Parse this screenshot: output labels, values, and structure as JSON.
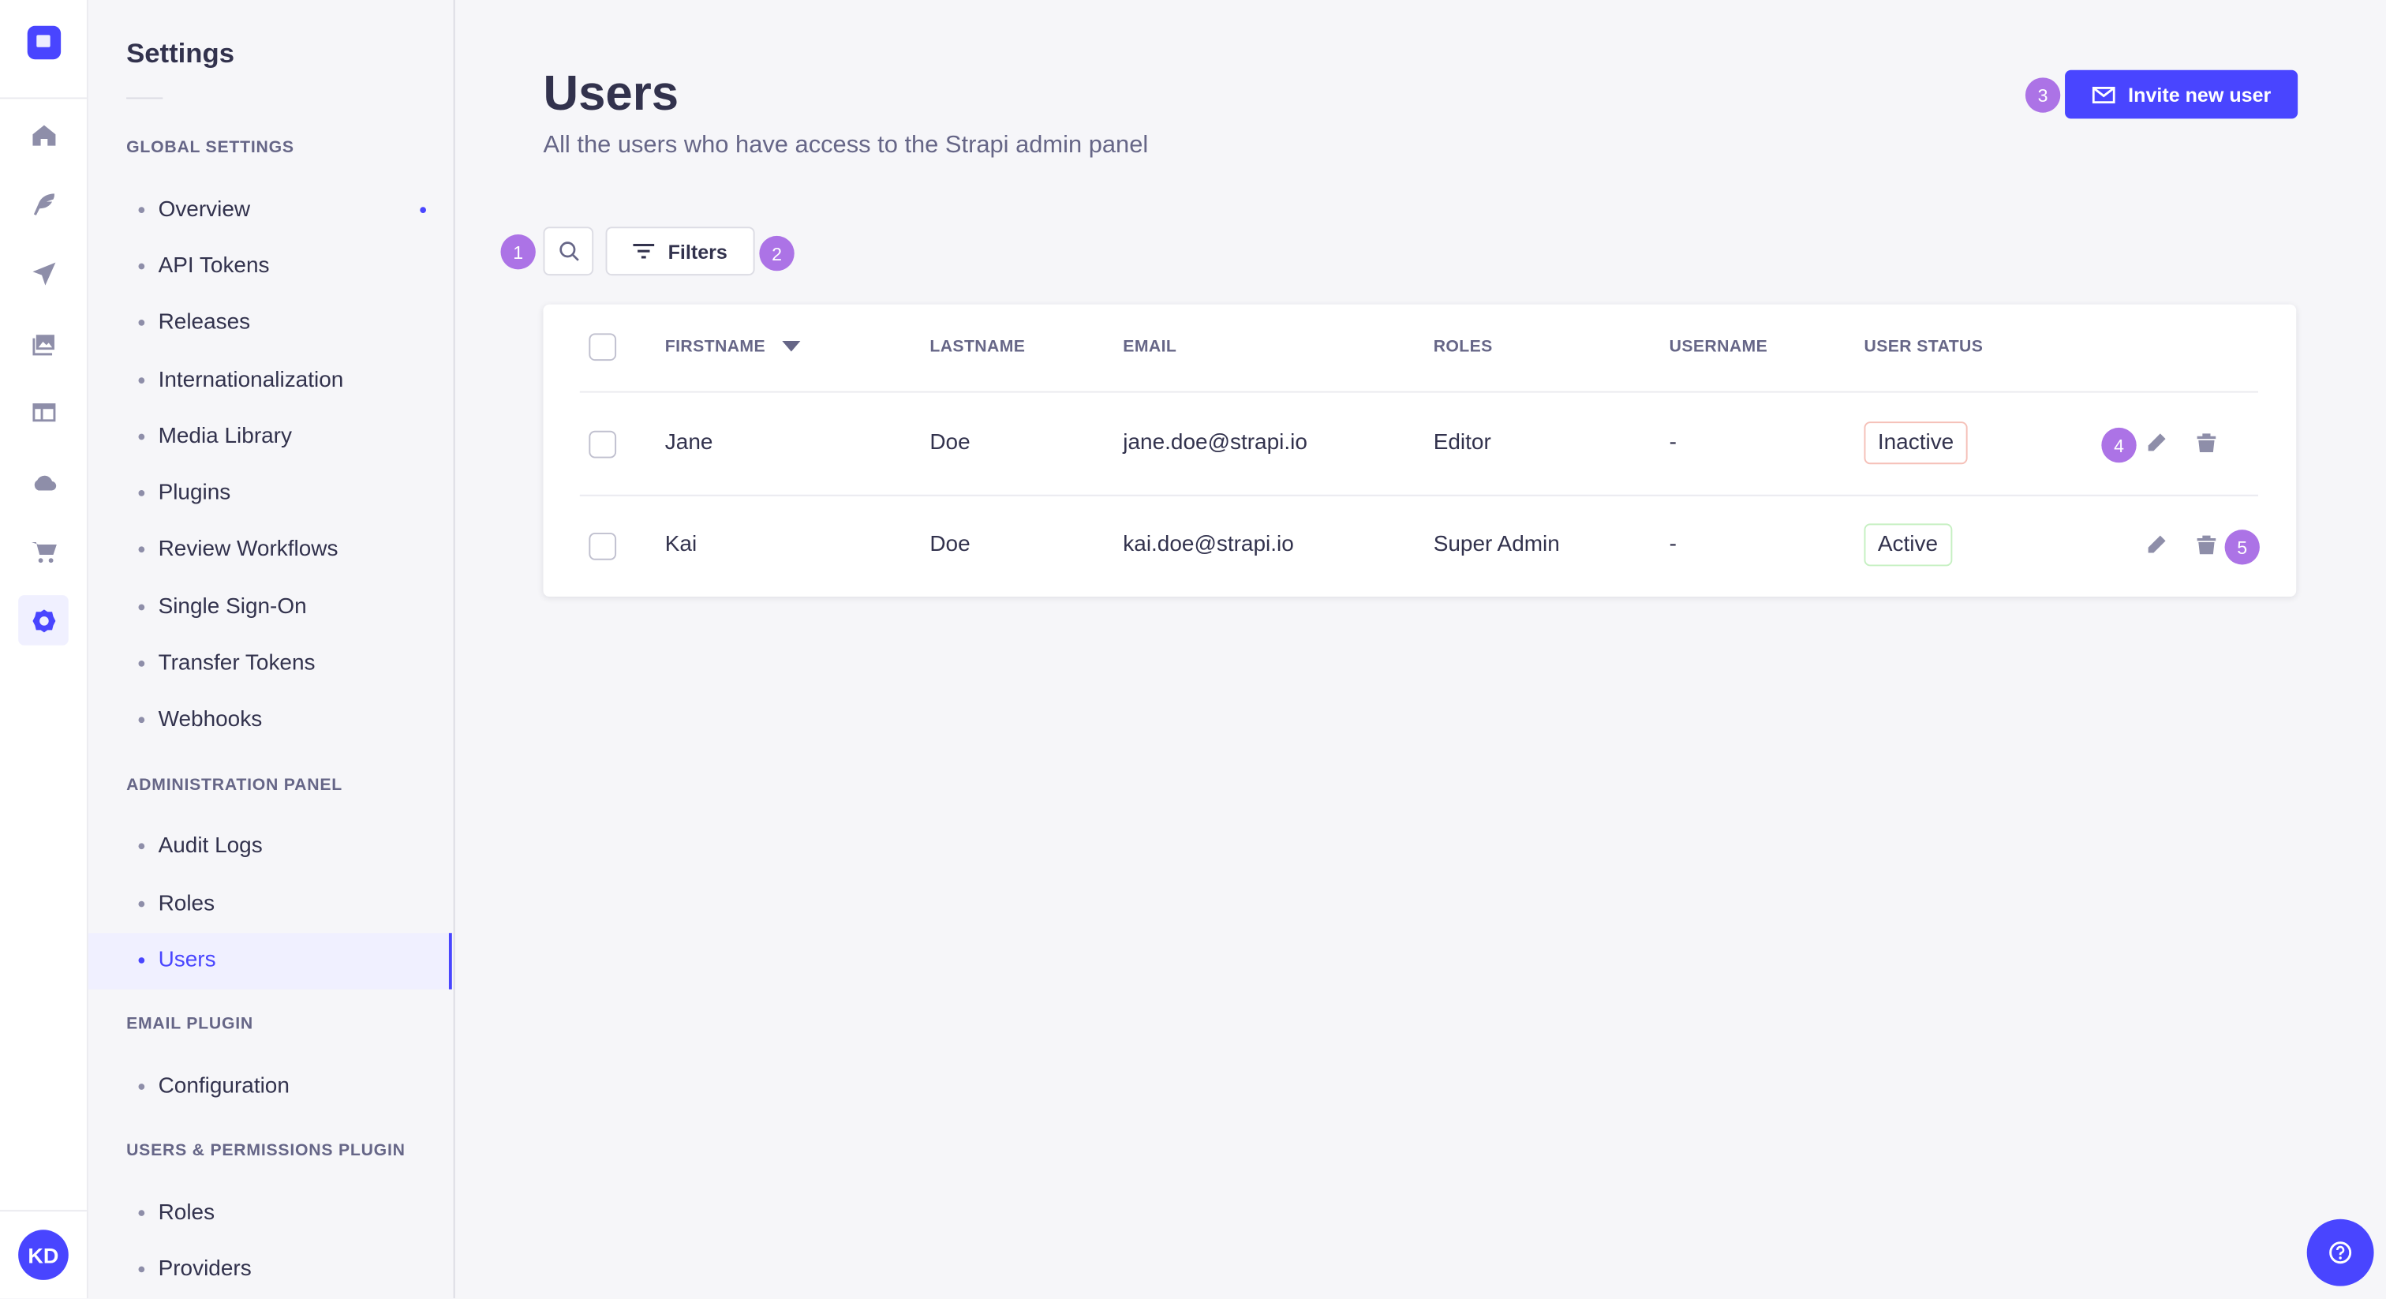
{
  "nav_rail": {
    "icons": [
      "home-icon",
      "content-manager-icon",
      "releases-icon",
      "media-library-icon",
      "content-type-builder-icon",
      "cloud-icon",
      "marketplace-icon",
      "settings-icon"
    ],
    "active": "settings-icon",
    "avatar_initials": "KD"
  },
  "sidebar": {
    "title": "Settings",
    "sections": [
      {
        "label": "Global Settings",
        "items": [
          "Overview",
          "API Tokens",
          "Releases",
          "Internationalization",
          "Media Library",
          "Plugins",
          "Review Workflows",
          "Single Sign-On",
          "Transfer Tokens",
          "Webhooks"
        ]
      },
      {
        "label": "Administration Panel",
        "items": [
          "Audit Logs",
          "Roles",
          "Users"
        ]
      },
      {
        "label": "Email Plugin",
        "items": [
          "Configuration"
        ]
      },
      {
        "label": "Users & Permissions Plugin",
        "items": [
          "Roles",
          "Providers"
        ]
      }
    ],
    "active_item": "Users"
  },
  "header": {
    "title": "Users",
    "subtitle": "All the users who have access to the Strapi admin panel",
    "invite_label": "Invite new user"
  },
  "toolbar": {
    "filters_label": "Filters"
  },
  "annotations": [
    "1",
    "2",
    "3",
    "4",
    "5"
  ],
  "table": {
    "columns": [
      "Firstname",
      "Lastname",
      "Email",
      "Roles",
      "Username",
      "User status"
    ],
    "sorted_column": "Firstname",
    "rows": [
      {
        "firstname": "Jane",
        "lastname": "Doe",
        "email": "jane.doe@strapi.io",
        "roles": "Editor",
        "username": "-",
        "status": "Inactive"
      },
      {
        "firstname": "Kai",
        "lastname": "Doe",
        "email": "kai.doe@strapi.io",
        "roles": "Super Admin",
        "username": "-",
        "status": "Active"
      }
    ]
  },
  "colors": {
    "primary": "#4945ff",
    "annotation": "#ac73e6",
    "inactive_border": "#f5c0b8",
    "active_border": "#c6f0c2"
  }
}
